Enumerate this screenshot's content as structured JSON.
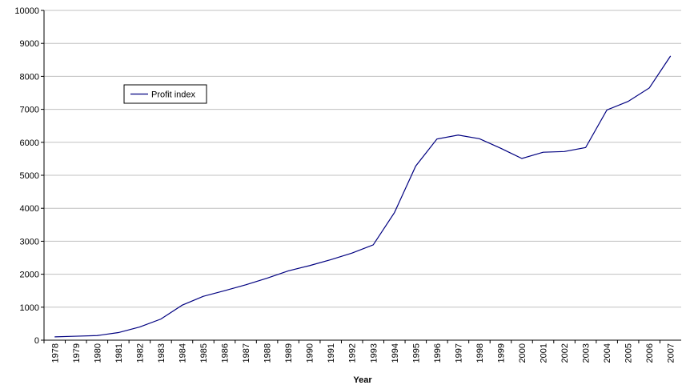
{
  "chart_data": {
    "type": "line",
    "x_label": "Year",
    "categories": [
      "1978",
      "1979",
      "1980",
      "1981",
      "1982",
      "1983",
      "1984",
      "1985",
      "1986",
      "1987",
      "1988",
      "1989",
      "1990",
      "1991",
      "1992",
      "1993",
      "1994",
      "1995",
      "1996",
      "1997",
      "1998",
      "1999",
      "2000",
      "2001",
      "2002",
      "2003",
      "2004",
      "2005",
      "2006",
      "2007"
    ],
    "series": [
      {
        "name": "Profit index",
        "color": "#000080",
        "values": [
          100,
          120,
          140,
          230,
          400,
          640,
          1060,
          1330,
          1500,
          1680,
          1880,
          2100,
          2260,
          2440,
          2640,
          2890,
          3870,
          5280,
          6100,
          6220,
          6110,
          5820,
          5510,
          5700,
          5720,
          5840,
          6980,
          7240,
          7650,
          8620
        ]
      }
    ],
    "ylim": [
      0,
      10000
    ],
    "yticks": [
      0,
      1000,
      2000,
      3000,
      4000,
      5000,
      6000,
      7000,
      8000,
      9000,
      10000
    ],
    "grid": true,
    "legend": "upper-left"
  }
}
